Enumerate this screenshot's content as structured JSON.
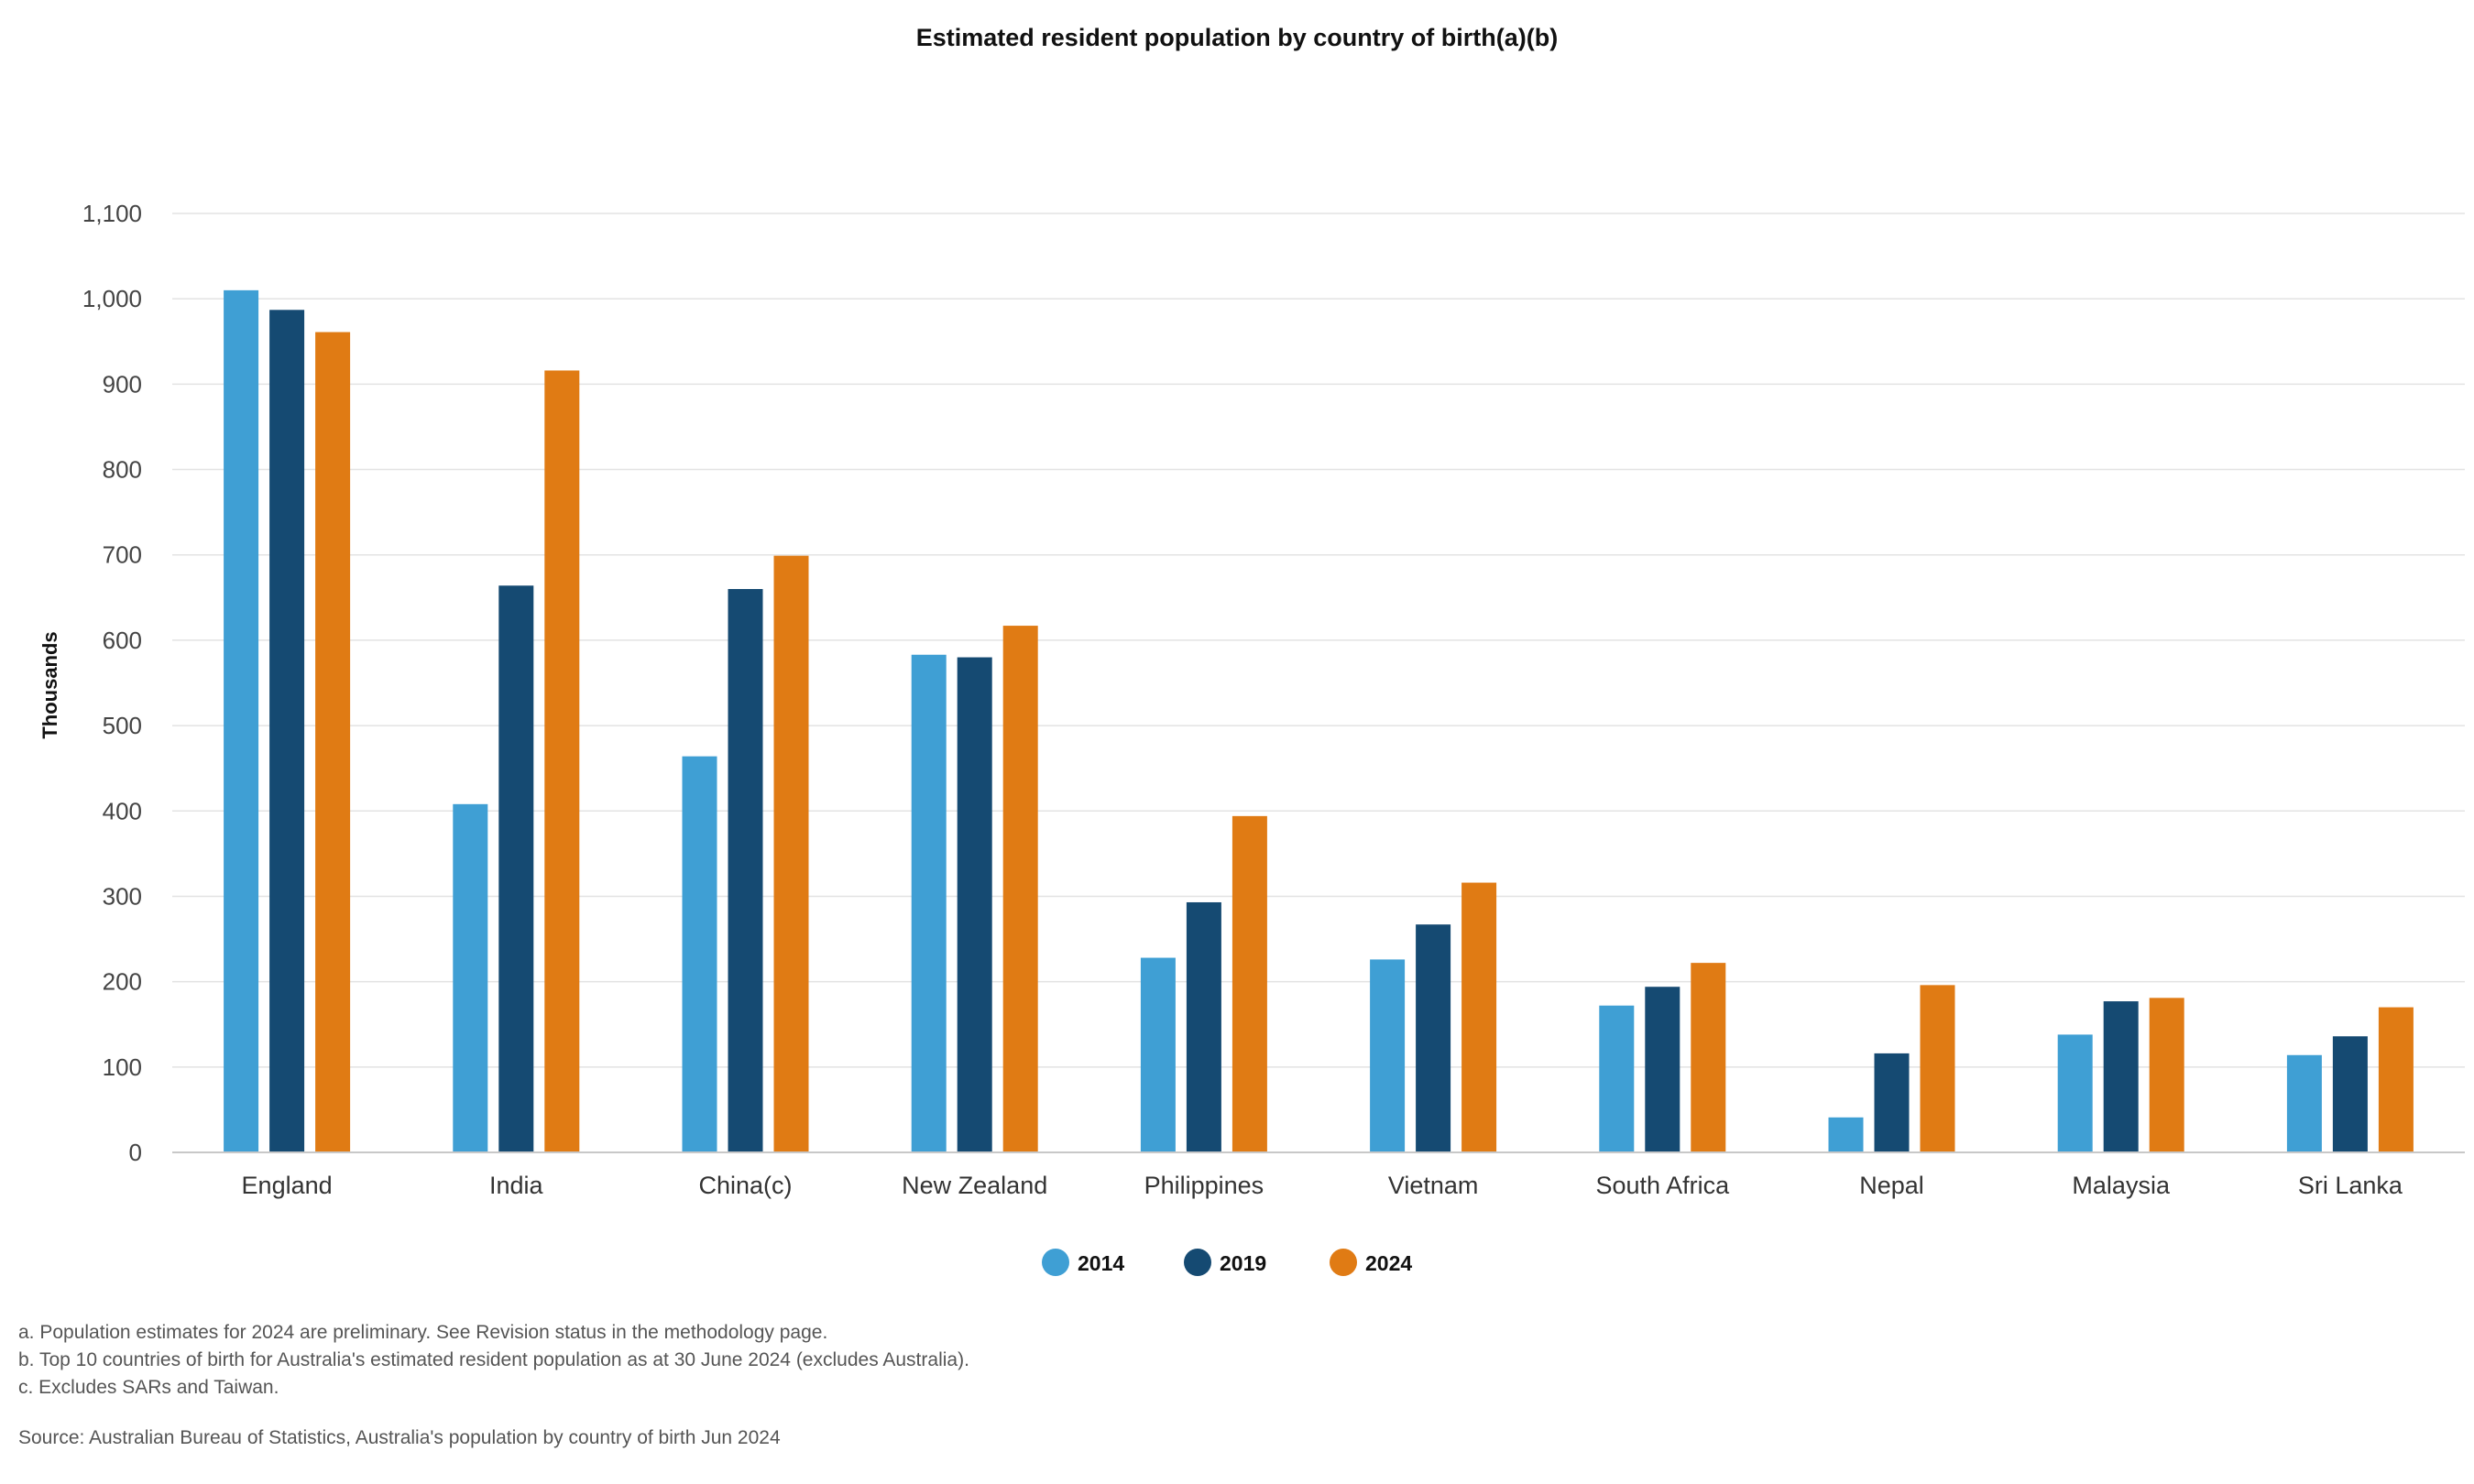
{
  "chart_data": {
    "type": "bar",
    "title": "Estimated resident population by country of birth(a)(b)",
    "ylabel": "Thousands",
    "xlabel": "",
    "ylim": [
      0,
      1100
    ],
    "yticks": [
      0,
      100,
      200,
      300,
      400,
      500,
      600,
      700,
      800,
      900,
      1000,
      1100
    ],
    "ytick_labels": [
      "0",
      "100",
      "200",
      "300",
      "400",
      "500",
      "600",
      "700",
      "800",
      "900",
      "1,000",
      "1,100"
    ],
    "grid": true,
    "legend_position": "bottom-center",
    "categories": [
      "England",
      "India",
      "China(c)",
      "New Zealand",
      "Philippines",
      "Vietnam",
      "South Africa",
      "Nepal",
      "Malaysia",
      "Sri Lanka"
    ],
    "series": [
      {
        "name": "2014",
        "color": "#3f9fd4",
        "values": [
          1010,
          408,
          464,
          583,
          228,
          226,
          172,
          41,
          138,
          114
        ]
      },
      {
        "name": "2019",
        "color": "#154a72",
        "values": [
          987,
          664,
          660,
          580,
          293,
          267,
          194,
          116,
          177,
          136
        ]
      },
      {
        "name": "2024",
        "color": "#e07b14",
        "values": [
          961,
          916,
          699,
          617,
          394,
          316,
          222,
          196,
          181,
          170
        ]
      }
    ]
  },
  "notes": {
    "a": "a. Population estimates for 2024 are preliminary. See Revision status in the methodology page.",
    "b": "b. Top 10 countries of birth for Australia's estimated resident population as at 30 June 2024 (excludes Australia).",
    "c": "c. Excludes SARs and Taiwan.",
    "source": "Source: Australian Bureau of Statistics, Australia's population by country of birth Jun 2024"
  }
}
